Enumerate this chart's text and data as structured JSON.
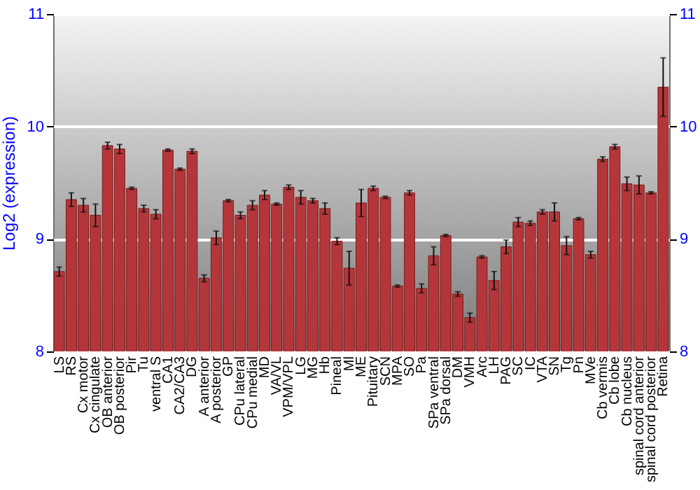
{
  "chart_data": {
    "type": "bar",
    "ylabel": "Log2 (expression)",
    "categories": [
      "LS",
      "RS",
      "Cx motor",
      "Cx cingulate",
      "OB anterior",
      "OB posterior",
      "Pir",
      "Tu",
      "ventral S",
      "CA1",
      "CA2/CA3",
      "DG",
      "A anterior",
      "A posterior",
      "GP",
      "CPu lateral",
      "CPu medial",
      "MD",
      "VA/VL",
      "VPM/VPL",
      "LG",
      "MG",
      "Hb",
      "Pineal",
      "Ml",
      "ME",
      "Pituitary",
      "SCN",
      "MPA",
      "SO",
      "Pa",
      "SPa ventral",
      "SPa dorsal",
      "DM",
      "VMH",
      "Arc",
      "LH",
      "PAG",
      "SC",
      "IC",
      "VTA",
      "SN",
      "Tg",
      "Pn",
      "MVe",
      "Cb vermis",
      "Cb lobe",
      "Cb nucleus",
      "spinal cord anterior",
      "spinal cord posterior",
      "Retina"
    ],
    "series": [
      {
        "color": "#b5363a",
        "values": [
          8.71,
          9.35,
          9.3,
          9.21,
          9.83,
          9.8,
          9.45,
          9.27,
          9.22,
          9.79,
          9.62,
          9.78,
          8.65,
          9.01,
          9.34,
          9.21,
          9.3,
          9.39,
          9.31,
          9.46,
          9.37,
          9.34,
          9.27,
          8.98,
          8.74,
          9.32,
          9.45,
          9.37,
          8.58,
          9.41,
          8.56,
          8.85,
          9.03,
          8.51,
          8.3,
          8.84,
          8.63,
          8.93,
          9.15,
          9.14,
          9.24,
          9.24,
          8.94,
          9.18,
          8.86,
          9.71,
          9.82,
          9.49,
          9.48,
          9.41,
          10.35
        ],
        "errors": [
          0.04,
          0.06,
          0.06,
          0.1,
          0.03,
          0.04,
          0.01,
          0.03,
          0.04,
          0.01,
          0.01,
          0.02,
          0.03,
          0.06,
          0.01,
          0.03,
          0.04,
          0.04,
          0.01,
          0.02,
          0.06,
          0.02,
          0.05,
          0.03,
          0.15,
          0.12,
          0.02,
          0.01,
          0.01,
          0.02,
          0.04,
          0.08,
          0.01,
          0.02,
          0.04,
          0.01,
          0.08,
          0.06,
          0.04,
          0.02,
          0.02,
          0.08,
          0.08,
          0.01,
          0.03,
          0.02,
          0.02,
          0.06,
          0.08,
          0.01,
          0.26
        ]
      }
    ],
    "ylim": [
      8,
      11
    ],
    "yticks": [
      8,
      9,
      10,
      11
    ],
    "y2lim": [
      8,
      11
    ],
    "y2ticks": [
      8,
      9,
      10,
      11
    ],
    "grid": "y"
  }
}
